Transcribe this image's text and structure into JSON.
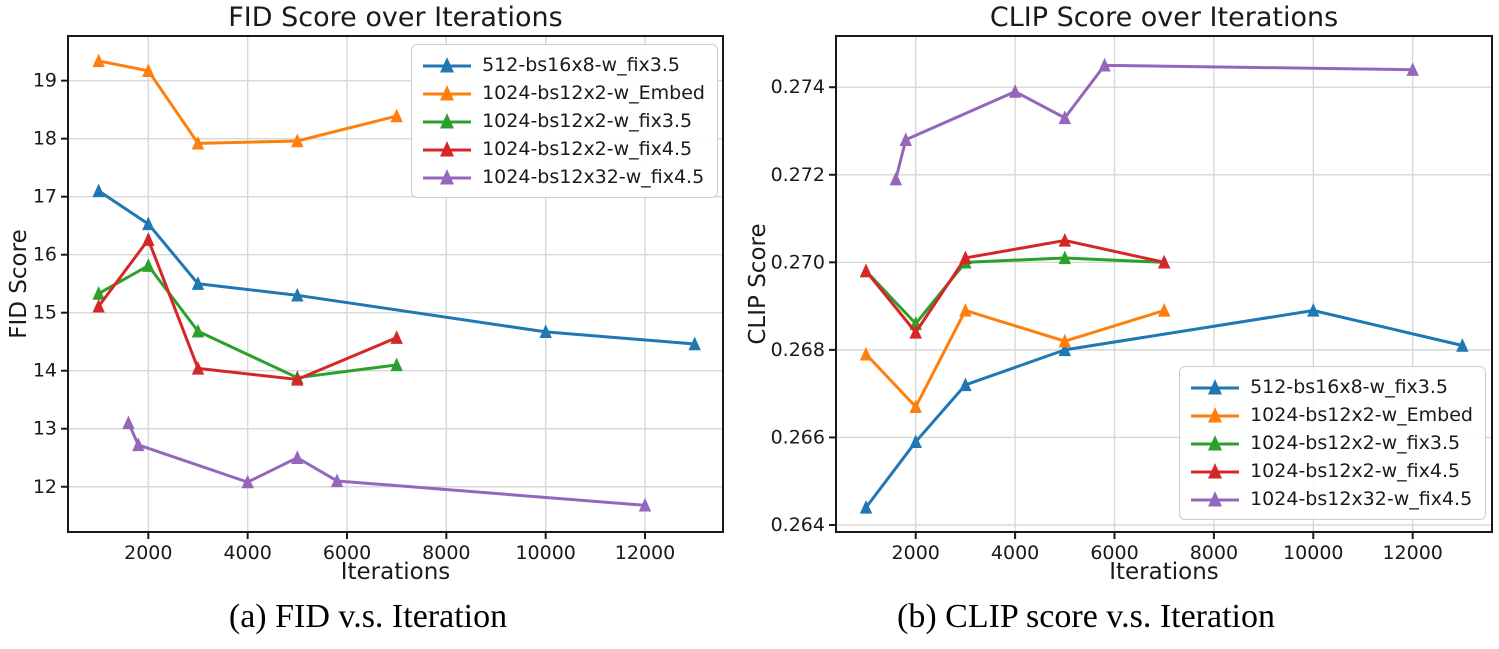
{
  "figure": {
    "captions": [
      {
        "label": "(a) FID v.s. Iteration"
      },
      {
        "label": "(b) CLIP score v.s. Iteration"
      }
    ]
  },
  "colors": {
    "blue": "#1f77b4",
    "orange": "#ff7f0e",
    "green": "#2ca02c",
    "red": "#d62728",
    "purple": "#9467bd",
    "grid": "#d8d8d8",
    "frame": "#1a1a1a"
  },
  "chart_data": [
    {
      "type": "line",
      "title": "FID Score over Iterations",
      "xlabel": "Iterations",
      "ylabel": "FID Score",
      "xlim": [
        383,
        13570
      ],
      "ylim": [
        11.22,
        19.77
      ],
      "xticks": [
        2000,
        4000,
        6000,
        8000,
        10000,
        12000
      ],
      "xtick_labels": [
        "2000",
        "4000",
        "6000",
        "8000",
        "10000",
        "12000"
      ],
      "yticks": [
        12,
        13,
        14,
        15,
        16,
        17,
        18,
        19
      ],
      "ytick_labels": [
        "12",
        "13",
        "14",
        "15",
        "16",
        "17",
        "18",
        "19"
      ],
      "grid": true,
      "legend_position": "upper-right",
      "series": [
        {
          "name": "512-bs16x8-w_fix3.5",
          "color": "#1f77b4",
          "x": [
            1000,
            2000,
            3000,
            5000,
            10000,
            13000
          ],
          "y": [
            17.1,
            16.53,
            15.5,
            15.3,
            14.67,
            14.46
          ]
        },
        {
          "name": "1024-bs12x2-w_Embed",
          "color": "#ff7f0e",
          "x": [
            1000,
            2000,
            3000,
            5000,
            7000
          ],
          "y": [
            19.34,
            19.17,
            17.92,
            17.96,
            18.39
          ]
        },
        {
          "name": "1024-bs12x2-w_fix3.5",
          "color": "#2ca02c",
          "x": [
            1000,
            2000,
            3000,
            5000,
            7000
          ],
          "y": [
            15.33,
            15.81,
            14.68,
            13.88,
            14.1
          ]
        },
        {
          "name": "1024-bs12x2-w_fix4.5",
          "color": "#d62728",
          "x": [
            1000,
            2000,
            3000,
            5000,
            7000
          ],
          "y": [
            15.11,
            16.26,
            14.04,
            13.85,
            14.57
          ]
        },
        {
          "name": "1024-bs12x32-w_fix4.5",
          "color": "#9467bd",
          "x": [
            1600,
            1800,
            4000,
            5000,
            5800,
            12000
          ],
          "y": [
            13.1,
            12.72,
            12.08,
            12.5,
            12.1,
            11.68
          ]
        }
      ]
    },
    {
      "type": "line",
      "title": "CLIP Score over Iterations",
      "xlabel": "Iterations",
      "ylabel": "CLIP Score",
      "xlim": [
        396,
        13596
      ],
      "ylim": [
        0.26384,
        0.27517
      ],
      "xticks": [
        2000,
        4000,
        6000,
        8000,
        10000,
        12000
      ],
      "xtick_labels": [
        "2000",
        "4000",
        "6000",
        "8000",
        "10000",
        "12000"
      ],
      "yticks": [
        0.264,
        0.266,
        0.268,
        0.27,
        0.272,
        0.274
      ],
      "ytick_labels": [
        "0.264",
        "0.266",
        "0.268",
        "0.270",
        "0.272",
        "0.274"
      ],
      "grid": true,
      "legend_position": "lower-right",
      "series": [
        {
          "name": "512-bs16x8-w_fix3.5",
          "color": "#1f77b4",
          "x": [
            1000,
            2000,
            3000,
            5000,
            10000,
            13000
          ],
          "y": [
            0.2644,
            0.2659,
            0.2672,
            0.268,
            0.2689,
            0.2681
          ]
        },
        {
          "name": "1024-bs12x2-w_Embed",
          "color": "#ff7f0e",
          "x": [
            1000,
            2000,
            3000,
            5000,
            7000
          ],
          "y": [
            0.2679,
            0.2667,
            0.2689,
            0.2682,
            0.2689
          ]
        },
        {
          "name": "1024-bs12x2-w_fix3.5",
          "color": "#2ca02c",
          "x": [
            1000,
            2000,
            3000,
            5000,
            7000
          ],
          "y": [
            0.2698,
            0.2686,
            0.27,
            0.2701,
            0.27
          ]
        },
        {
          "name": "1024-bs12x2-w_fix4.5",
          "color": "#d62728",
          "x": [
            1000,
            2000,
            3000,
            5000,
            7000
          ],
          "y": [
            0.2698,
            0.2684,
            0.2701,
            0.2705,
            0.27
          ]
        },
        {
          "name": "1024-bs12x32-w_fix4.5",
          "color": "#9467bd",
          "x": [
            1600,
            1800,
            4000,
            5000,
            5800,
            12000
          ],
          "y": [
            0.2719,
            0.2728,
            0.2739,
            0.2733,
            0.2745,
            0.2744
          ]
        }
      ]
    }
  ]
}
